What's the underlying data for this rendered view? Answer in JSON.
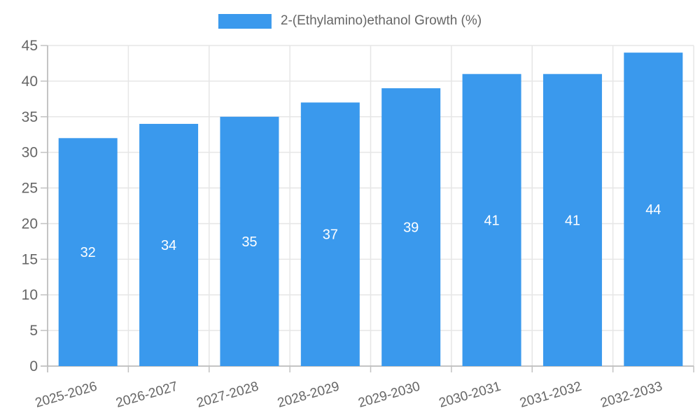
{
  "legend": {
    "label": "2-(Ethylamino)ethanol Growth (%)"
  },
  "chart_data": {
    "type": "bar",
    "title": "",
    "xlabel": "",
    "ylabel": "",
    "categories": [
      "2025-2026",
      "2026-2027",
      "2027-2028",
      "2028-2029",
      "2029-2030",
      "2030-2031",
      "2031-2032",
      "2032-2033"
    ],
    "series": [
      {
        "name": "2-(Ethylamino)ethanol Growth (%)",
        "values": [
          32,
          34,
          35,
          37,
          39,
          41,
          41,
          44
        ]
      }
    ],
    "value_labels": [
      "32",
      "34",
      "35",
      "37",
      "39",
      "41",
      "41",
      "44"
    ],
    "ylim": [
      0,
      45
    ],
    "yticks": [
      0,
      5,
      10,
      15,
      20,
      25,
      30,
      35,
      40,
      45
    ],
    "grid": true,
    "legend_position": "top-center",
    "bar_label_position": "center-inside"
  },
  "colors": {
    "bar": "#3a99ed",
    "bar_value_label": "#ffffff",
    "grid_line": "#e6e6e6",
    "axis_line": "#b0b0b0",
    "tick_mark": "#c2c2c2",
    "axis_text": "#666666",
    "background": "#ffffff"
  }
}
